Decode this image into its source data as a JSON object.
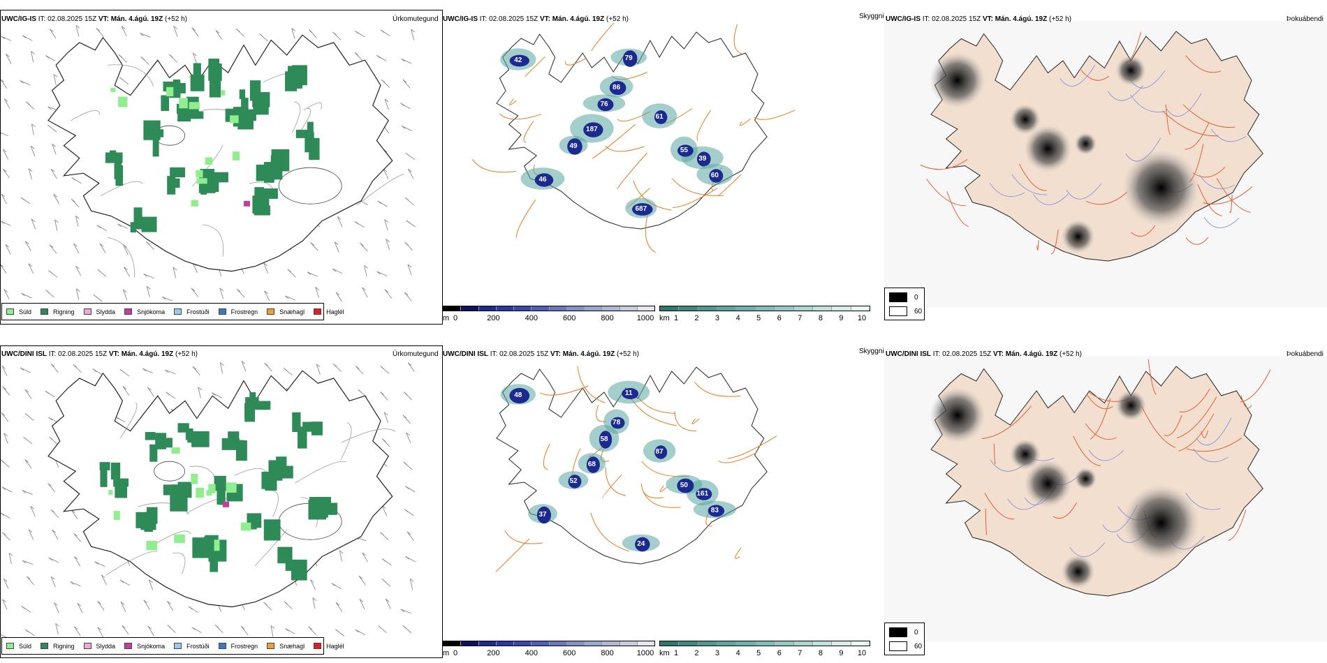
{
  "rows": [
    {
      "model": "UWC/IG-IS",
      "it_label": "IT:",
      "it_value": "02.08.2025 15Z",
      "vt_label": "VT:",
      "vt_value": "Mán. 4.ágú. 19Z",
      "lead": "(+52 h)",
      "precip_title": "Úrkomutegund",
      "cloud_title": "Skyggni",
      "fog_title": "Þokuábendi"
    },
    {
      "model": "UWC/DINI ISL",
      "it_label": "IT:",
      "it_value": "02.08.2025 15Z",
      "vt_label": "VT:",
      "vt_value": "Mán. 4.ágú. 19Z",
      "lead": "(+52 h)",
      "precip_title": "Úrkomutegund",
      "cloud_title": "Skyggni",
      "fog_title": "Þokuábendi"
    }
  ],
  "precip_legend": [
    {
      "label": "Súld",
      "color": "#90ee90"
    },
    {
      "label": "Rigning",
      "color": "#2e8b57"
    },
    {
      "label": "Slydda",
      "color": "#f4a6d7"
    },
    {
      "label": "Snjókoma",
      "color": "#c040a0"
    },
    {
      "label": "Frostúði",
      "color": "#9cc8f0"
    },
    {
      "label": "Frostregn",
      "color": "#3a78c8"
    },
    {
      "label": "Snæhagl",
      "color": "#f0a030"
    },
    {
      "label": "Haglél",
      "color": "#e02020"
    }
  ],
  "height_scale": {
    "unit": "m",
    "ticks": [
      "0",
      "200",
      "400",
      "600",
      "800",
      "1000"
    ],
    "colors": [
      "#000000",
      "#101060",
      "#1c2a90",
      "#2a38a8",
      "#3848b0",
      "#5060b8",
      "#6878c0",
      "#8090c8",
      "#98a8d0",
      "#b0b8d8",
      "#c8cce0",
      "#e4e6f0"
    ]
  },
  "dist_scale": {
    "unit": "km",
    "ticks": [
      "1",
      "2",
      "3",
      "4",
      "5",
      "6",
      "7",
      "8",
      "9",
      "10"
    ],
    "colors": [
      "#2a7a70",
      "#3a8a80",
      "#4a9890",
      "#5aa6a0",
      "#6ab2ac",
      "#7ebeb8",
      "#94cac6",
      "#aad6d2",
      "#c0e2de",
      "#d6ecea",
      "#eaf6f4"
    ]
  },
  "fog_legend": {
    "entries": [
      {
        "label": "0",
        "color": "#000000"
      },
      {
        "label": "60",
        "color": "#ffffff"
      }
    ]
  },
  "cloud_labels": [
    [
      "42",
      "79",
      "86",
      "76",
      "187",
      "49",
      "61",
      "39",
      "687",
      "55",
      "46",
      "60"
    ],
    [
      "48",
      "11",
      "78",
      "58",
      "68",
      "52",
      "87",
      "161",
      "24",
      "50",
      "37",
      "83"
    ]
  ]
}
